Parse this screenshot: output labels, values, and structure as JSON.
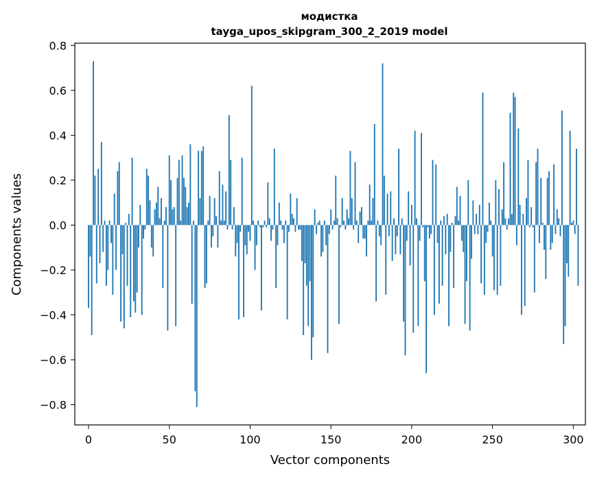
{
  "chart_data": {
    "type": "bar",
    "title": "модистка",
    "subtitle": "tayga_upos_skipgram_300_2_2019 model",
    "xlabel": "Vector components",
    "ylabel": "Components values",
    "xlim": [
      -8.5,
      307.5
    ],
    "ylim": [
      -0.89,
      0.81
    ],
    "xticks": [
      0,
      50,
      100,
      150,
      200,
      250,
      300
    ],
    "yticks": [
      -0.8,
      -0.6,
      -0.4,
      -0.2,
      0.0,
      0.2,
      0.4,
      0.6,
      0.8
    ],
    "ytick_labels": [
      "−0.8",
      "−0.6",
      "−0.4",
      "−0.2",
      "0.0",
      "0.2",
      "0.4",
      "0.6",
      "0.8"
    ],
    "bar_color": "#1f77b4",
    "values": [
      -0.37,
      -0.14,
      -0.49,
      0.73,
      0.22,
      -0.26,
      0.25,
      -0.17,
      0.37,
      -0.12,
      0.02,
      -0.27,
      -0.2,
      0.02,
      -0.08,
      -0.31,
      0.14,
      -0.2,
      0.24,
      0.28,
      -0.43,
      -0.13,
      -0.46,
      0.01,
      -0.27,
      0.05,
      -0.41,
      0.3,
      -0.34,
      -0.39,
      -0.3,
      -0.1,
      0.09,
      -0.4,
      -0.06,
      -0.02,
      0.25,
      0.22,
      0.11,
      -0.1,
      -0.14,
      0.07,
      0.1,
      0.17,
      0.03,
      0.12,
      -0.28,
      0.02,
      0.08,
      -0.47,
      0.31,
      0.2,
      0.07,
      0.08,
      -0.45,
      0.21,
      0.29,
      0.02,
      0.31,
      0.21,
      0.17,
      0.08,
      0.1,
      0.36,
      -0.35,
      0.02,
      -0.74,
      -0.81,
      0.33,
      0.12,
      0.33,
      0.35,
      -0.28,
      -0.26,
      0.02,
      0.13,
      -0.1,
      -0.05,
      0.12,
      0.04,
      -0.1,
      0.24,
      0.02,
      0.18,
      0.02,
      0.15,
      -0.02,
      0.49,
      0.29,
      -0.02,
      0.08,
      -0.14,
      -0.08,
      -0.42,
      -0.03,
      0.3,
      -0.41,
      -0.09,
      -0.13,
      -0.03,
      -0.07,
      0.62,
      0.02,
      -0.2,
      -0.09,
      0.02,
      -0.01,
      -0.38,
      -0.01,
      0.02,
      -0.01,
      0.19,
      0.03,
      -0.07,
      -0.02,
      0.34,
      -0.28,
      -0.09,
      0.1,
      0.02,
      -0.02,
      -0.08,
      0.02,
      -0.42,
      -0.03,
      0.14,
      0.05,
      0.03,
      -0.03,
      0.12,
      -0.02,
      -0.02,
      -0.16,
      -0.49,
      -0.17,
      -0.27,
      -0.45,
      -0.25,
      -0.6,
      -0.5,
      0.07,
      -0.04,
      0.01,
      0.02,
      -0.14,
      -0.12,
      0.02,
      -0.09,
      -0.57,
      -0.04,
      0.07,
      -0.02,
      0.02,
      0.22,
      0.03,
      -0.44,
      -0.01,
      0.12,
      0.02,
      -0.02,
      0.07,
      0.03,
      0.33,
      0.12,
      -0.02,
      0.28,
      0.02,
      -0.08,
      0.06,
      0.08,
      -0.06,
      -0.06,
      -0.14,
      0.02,
      0.18,
      0.02,
      0.12,
      0.45,
      -0.34,
      0.02,
      -0.05,
      -0.09,
      0.72,
      0.22,
      -0.31,
      0.14,
      -0.05,
      0.15,
      -0.16,
      0.03,
      -0.13,
      -0.05,
      0.34,
      -0.13,
      0.03,
      -0.43,
      -0.58,
      -0.07,
      0.15,
      -0.18,
      0.09,
      -0.48,
      0.42,
      0.03,
      -0.45,
      -0.07,
      0.41,
      -0.01,
      -0.25,
      -0.66,
      -0.01,
      -0.06,
      -0.04,
      0.29,
      -0.4,
      0.27,
      -0.08,
      -0.35,
      0.02,
      -0.27,
      0.04,
      -0.13,
      0.05,
      -0.45,
      -0.12,
      0.01,
      -0.28,
      0.04,
      0.17,
      0.02,
      0.13,
      -0.07,
      -0.12,
      -0.44,
      -0.25,
      0.2,
      -0.47,
      -0.15,
      0.11,
      -0.04,
      0.05,
      -0.04,
      0.09,
      -0.26,
      0.59,
      -0.31,
      -0.08,
      -0.03,
      0.1,
      0.02,
      -0.14,
      -0.29,
      0.2,
      -0.31,
      0.16,
      -0.27,
      0.07,
      0.28,
      0.03,
      -0.02,
      0.03,
      0.5,
      0.05,
      0.59,
      0.57,
      -0.09,
      0.43,
      0.09,
      -0.4,
      0.05,
      -0.36,
      0.12,
      0.29,
      -0.01,
      0.08,
      -0.01,
      -0.3,
      0.28,
      0.34,
      -0.08,
      0.21,
      0.01,
      -0.11,
      -0.24,
      0.21,
      0.24,
      -0.11,
      -0.08,
      0.27,
      -0.04,
      0.07,
      0.03,
      -0.05,
      0.51,
      -0.53,
      -0.45,
      -0.17,
      -0.23,
      0.42,
      0.01,
      0.02,
      -0.04,
      0.34,
      -0.27
    ]
  }
}
